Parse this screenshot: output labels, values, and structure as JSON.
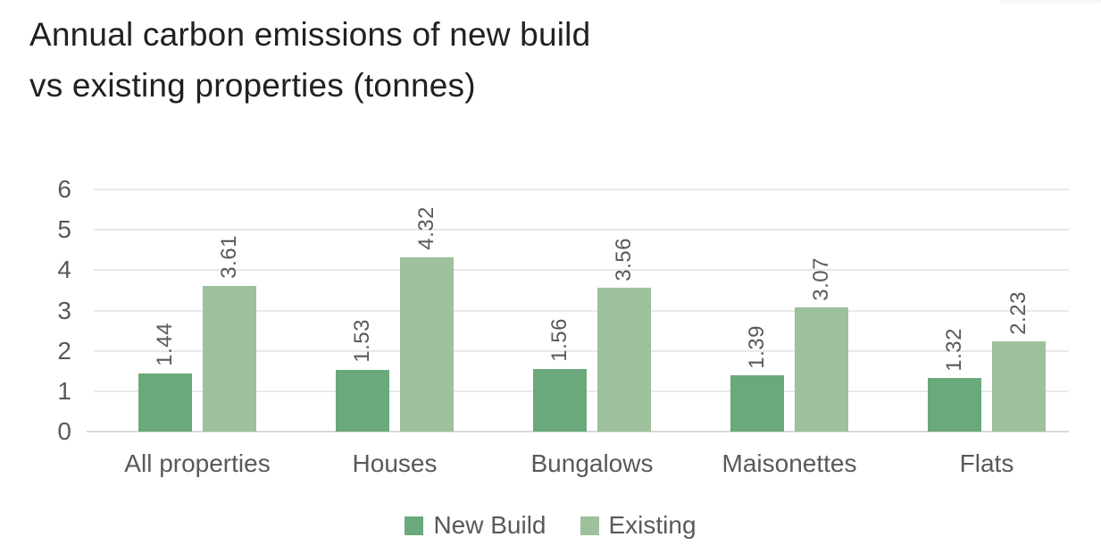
{
  "title": {
    "line1": "Annual carbon emissions of new build",
    "line2": "vs existing properties (tonnes)"
  },
  "chart_data": {
    "type": "bar",
    "title": "Annual carbon emissions of new build vs existing properties (tonnes)",
    "categories": [
      "All properties",
      "Houses",
      "Bungalows",
      "Maisonettes",
      "Flats"
    ],
    "series": [
      {
        "name": "New Build",
        "color": "#69a97b",
        "values": [
          1.44,
          1.53,
          1.56,
          1.39,
          1.32
        ],
        "labels": [
          "1.44",
          "1.53",
          "1.56",
          "1.39",
          "1.32"
        ]
      },
      {
        "name": "Existing",
        "color": "#9dc09d",
        "values": [
          3.61,
          4.32,
          3.56,
          3.07,
          2.23
        ],
        "labels": [
          "3.61",
          "4.32",
          "3.56",
          "3.07",
          "2.23"
        ]
      }
    ],
    "xlabel": "",
    "ylabel": "",
    "ylim": [
      0,
      6
    ],
    "yticks": [
      "0",
      "1",
      "2",
      "3",
      "4",
      "5",
      "6"
    ],
    "grid": "horizontal",
    "legend_position": "bottom",
    "value_label_style": "rotated-90-above-bar"
  },
  "colors": {
    "background": "#ffffff",
    "axis_text": "#595959",
    "gridline": "#e9e9e9",
    "baseline": "#d9d9d9",
    "title_text": "#212121"
  }
}
